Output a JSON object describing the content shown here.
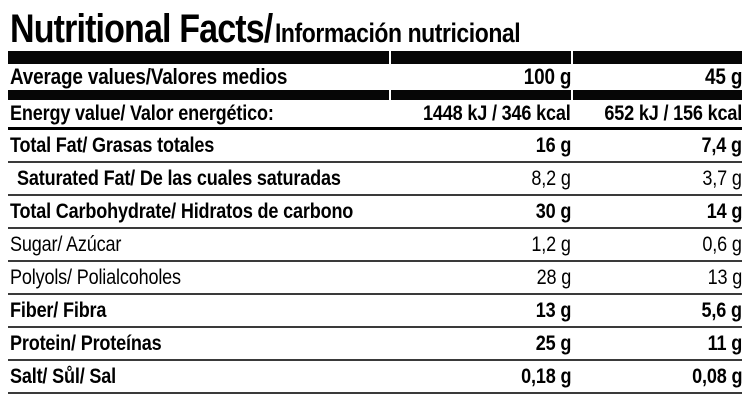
{
  "title": {
    "en": "Nutritional Facts",
    "slash": "/",
    "es": "Información nutricional"
  },
  "table": {
    "header": {
      "label": "Average values/Valores medios",
      "per_100": "100 g",
      "per_45": "45 g"
    },
    "energy": {
      "label": "Energy value/ Valor energético:",
      "per_100": "1448 kJ / 346 kcal",
      "per_45": "652 kJ / 156 kcal"
    },
    "rows": [
      {
        "label": "Total Fat/ Grasas totales",
        "per_100": "16 g",
        "per_45": "7,4 g"
      },
      {
        "label": "Saturated Fat/ De las cuales saturadas",
        "per_100": "8,2 g",
        "per_45": "3,7 g"
      },
      {
        "label": "Total Carbohydrate/ Hidratos de carbono",
        "per_100": "30 g",
        "per_45": "14 g"
      },
      {
        "label": "Sugar/ Azúcar",
        "per_100": "1,2 g",
        "per_45": "0,6 g"
      },
      {
        "label": "Polyols/ Polialcoholes",
        "per_100": "28 g",
        "per_45": "13 g"
      },
      {
        "label": "Fiber/ Fibra",
        "per_100": "13 g",
        "per_45": "5,6 g"
      },
      {
        "label": "Protein/ Proteínas",
        "per_100": "25 g",
        "per_45": "11 g"
      },
      {
        "label": "Salt/ Sůl/ Sal",
        "per_100": "0,18 g",
        "per_45": "0,08 g"
      }
    ]
  },
  "colors": {
    "bar_black": "#060606",
    "separator_gray": "#3a3a3a",
    "text": "#000000",
    "background": "#ffffff"
  }
}
